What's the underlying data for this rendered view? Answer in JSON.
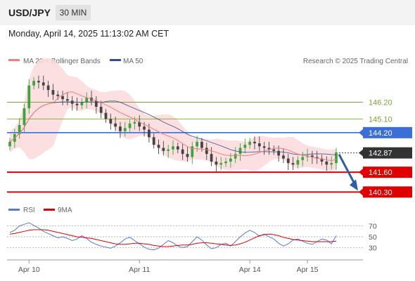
{
  "header": {
    "pair": "USD/JPY",
    "timeframe": "30 MIN"
  },
  "timestamp": "Monday, April 14, 2025 11:13:02 AM CET",
  "legend": {
    "ma20": {
      "label": "MA 20 + Bollinger Bands",
      "color": "#f08080"
    },
    "ma50": {
      "label": "MA 50",
      "color": "#2f4f8f"
    },
    "copyright": "Research © 2025 Trading Central"
  },
  "rsi_legend": {
    "rsi": {
      "label": "RSI",
      "color": "#5a78d8"
    },
    "ma9": {
      "label": "9MA",
      "color": "#e00000"
    }
  },
  "chart_data": [
    {
      "type": "candlestick",
      "title": "USD/JPY",
      "x_tick_labels": [
        "Apr 10",
        "Apr 11",
        "Apr 14",
        "Apr 15"
      ],
      "y_range": [
        139.9,
        148.3
      ],
      "close_series": [
        143.6,
        144.1,
        144.7,
        145.8,
        147.3,
        147.6,
        147.5,
        147.3,
        147.0,
        146.7,
        146.6,
        146.4,
        146.3,
        146.1,
        146.0,
        146.2,
        146.5,
        146.3,
        145.9,
        145.5,
        145.1,
        144.8,
        144.6,
        144.3,
        144.5,
        144.8,
        144.9,
        144.6,
        144.4,
        143.9,
        143.4,
        143.2,
        143.0,
        143.1,
        143.3,
        143.1,
        142.8,
        142.6,
        143.3,
        143.6,
        143.2,
        142.8,
        142.3,
        142.1,
        142.2,
        142.3,
        142.5,
        142.8,
        143.2,
        143.4,
        143.6,
        143.5,
        143.3,
        143.2,
        143.1,
        143.0,
        142.7,
        142.5,
        142.2,
        142.1,
        142.4,
        142.6,
        142.7,
        142.6,
        142.5,
        142.3,
        142.1,
        142.2,
        142.9
      ],
      "series": [
        {
          "name": "MA 20 + Bollinger Bands"
        },
        {
          "name": "MA 50"
        }
      ],
      "horizontal_levels": [
        {
          "value": 146.2,
          "label": "146.20",
          "color": "#7aa53a",
          "style": "thin"
        },
        {
          "value": 145.1,
          "label": "145.10",
          "color": "#7aa53a",
          "style": "thin"
        },
        {
          "value": 144.2,
          "label": "144.20",
          "color": "#3a6fd8",
          "style": "pivot"
        },
        {
          "value": 142.87,
          "label": "142.87",
          "color": "#333333",
          "style": "current"
        },
        {
          "value": 141.6,
          "label": "141.60",
          "color": "#e00000",
          "style": "support"
        },
        {
          "value": 140.3,
          "label": "140.30",
          "color": "#e00000",
          "style": "support"
        }
      ],
      "forecast_arrow": {
        "from": 142.87,
        "to": 140.3,
        "color": "#2c5da8"
      },
      "grid": false
    },
    {
      "type": "line",
      "title": "RSI",
      "y_tick_labels": [
        "70",
        "50",
        "30"
      ],
      "y_range": [
        10,
        85
      ],
      "series": [
        {
          "name": "RSI",
          "values": [
            58,
            62,
            70,
            73,
            76,
            71,
            66,
            60,
            56,
            52,
            48,
            50,
            47,
            43,
            46,
            52,
            47,
            40,
            36,
            33,
            31,
            29,
            33,
            39,
            46,
            49,
            43,
            37,
            31,
            27,
            26,
            29,
            36,
            43,
            39,
            33,
            30,
            32,
            41,
            50,
            44,
            35,
            28,
            30,
            36,
            38,
            33,
            41,
            50,
            57,
            62,
            58,
            51,
            55,
            50,
            46,
            38,
            33,
            37,
            44,
            46,
            42,
            38,
            36,
            41,
            46,
            44,
            37,
            52
          ]
        },
        {
          "name": "9MA",
          "values": [
            55,
            56,
            58,
            60,
            62,
            63,
            63,
            63,
            62,
            60,
            58,
            56,
            54,
            52,
            50,
            49,
            48,
            47,
            45,
            43,
            41,
            39,
            37,
            36,
            36,
            37,
            38,
            38,
            37,
            36,
            34,
            33,
            32,
            32,
            33,
            34,
            35,
            35,
            36,
            38,
            39,
            39,
            38,
            37,
            36,
            35,
            34,
            35,
            37,
            40,
            44,
            48,
            52,
            54,
            55,
            54,
            52,
            49,
            47,
            45,
            44,
            43,
            42,
            41,
            41,
            41,
            41,
            41,
            42
          ]
        }
      ],
      "reference_lines": [
        70,
        50,
        30
      ]
    }
  ]
}
